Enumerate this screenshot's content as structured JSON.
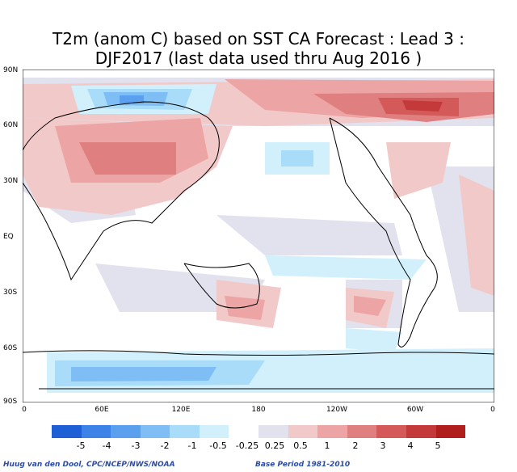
{
  "title_line1": "T2m (anom C) based on SST CA Forecast : Lead 3 :",
  "title_line2": "DJF2017 (last data used thru Aug 2016 )",
  "y_axis_labels": [
    "90N",
    "60N",
    "30N",
    "EQ",
    "30S",
    "60S",
    "90S"
  ],
  "x_axis_labels": [
    "0",
    "60E",
    "120E",
    "180",
    "120W",
    "60W",
    "0"
  ],
  "legend": {
    "ticks": [
      "-5",
      "-4",
      "-3",
      "-2",
      "-1",
      "-0.5",
      "-0.25",
      "0.25",
      "0.5",
      "1",
      "2",
      "3",
      "4",
      "5"
    ],
    "colors": [
      "#1e5fd6",
      "#3d82e6",
      "#5aa0ee",
      "#7fbef4",
      "#a8dcf9",
      "#d2f0fb",
      "#ffffff",
      "#e2e2ee",
      "#f2c9c9",
      "#eda4a4",
      "#e07f7f",
      "#d45a5a",
      "#c43a3a",
      "#b01e1e"
    ]
  },
  "footer_left": "Huug van den Dool, CPC/NCEP/NWS/NOAA",
  "footer_right": "Base Period 1981-2010"
}
